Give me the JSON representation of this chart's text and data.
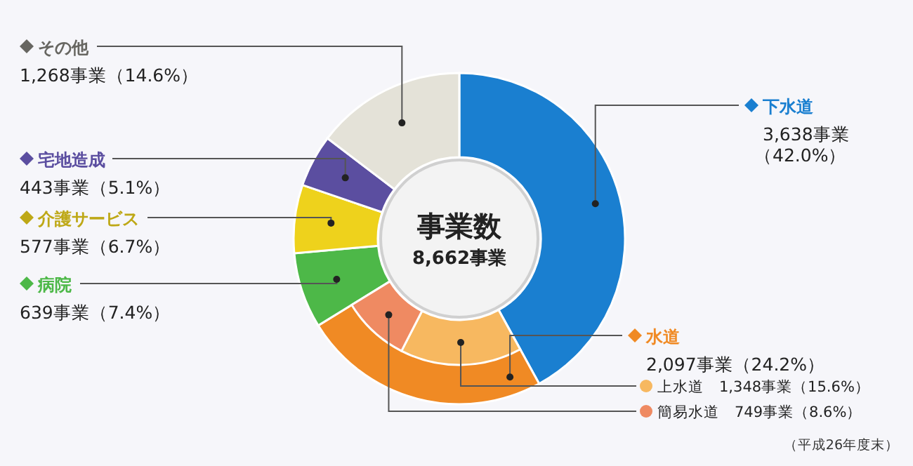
{
  "chart_data": [
    {
      "type": "donut",
      "title": "事業数",
      "subtitle": "8,662事業",
      "categories": [
        "下水道",
        "水道",
        "病院",
        "介護サービス",
        "宅地造成",
        "その他"
      ],
      "values": [
        3638,
        2097,
        639,
        577,
        443,
        1268
      ],
      "legend": "left",
      "value_labels": [
        "3,638事業（42.0%）",
        "2,097事業（24.2%）",
        "639事業（7.4%）",
        "577事業（6.7%）",
        "443事業（5.1%）",
        "1,268事業（14.6%）"
      ],
      "colors": [
        "#1a7fd0",
        "#f08a24",
        "#4db848",
        "#eed21c",
        "#5b4ea0",
        "#e4e2d8"
      ],
      "annotations": [
        "（平成26年度末）"
      ]
    },
    {
      "type": "donut",
      "legend": "bottom right",
      "categories": [
        "上水道",
        "簡易水道"
      ],
      "values": [
        1348,
        749
      ],
      "value_labels": [
        "1,348事業（15.6%）",
        "749事業（8.6%）"
      ],
      "colors": [
        "#f7b860",
        "#ef8a62"
      ]
    }
  ]
}
